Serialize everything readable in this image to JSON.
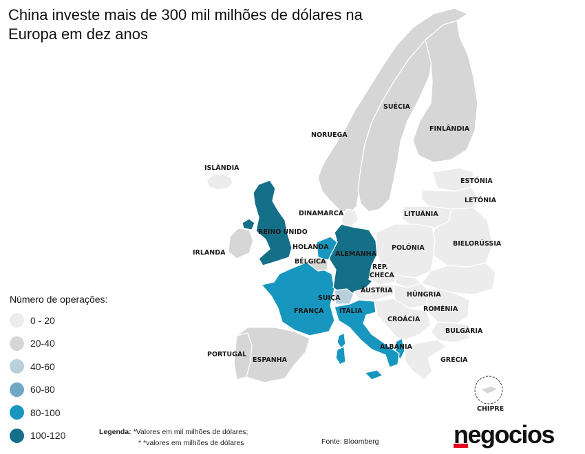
{
  "title": "China investe mais de 300 mil milhões de dólares na Europa em dez anos",
  "colors": {
    "bin_0_20": "#ececec",
    "bin_20_40": "#d6d6d6",
    "bin_40_60": "#b8cfdc",
    "bin_60_80": "#6fa8c4",
    "bin_80_100": "#1797bf",
    "bin_100_120": "#146f88"
  },
  "legend": {
    "title": "Número de operações:",
    "items": [
      {
        "label": "0 - 20",
        "color": "#ececec"
      },
      {
        "label": "20-40",
        "color": "#d6d6d6"
      },
      {
        "label": "40-60",
        "color": "#b8cfdc"
      },
      {
        "label": "60-80",
        "color": "#6fa8c4"
      },
      {
        "label": "80-100",
        "color": "#1797bf"
      },
      {
        "label": "100-120",
        "color": "#146f88"
      }
    ]
  },
  "countries": {
    "islandia": "ISLÂNDIA",
    "noruega": "NORUEGA",
    "suecia": "SUÉCIA",
    "finlandia": "FINLÂNDIA",
    "estonia": "ESTÓNIA",
    "letonia": "LETÓNIA",
    "lituania": "LITUÂNIA",
    "dinamarca": "DINAMARCA",
    "reino_unido": "REINO UNIDO",
    "irlanda": "IRLANDA",
    "holanda": "HOLANDA",
    "belgica": "BÉLGICA",
    "alemanha": "ALEMANHA",
    "polonia": "POLÓNIA",
    "bielorussia": "BIELORÚSSIA",
    "rep_checa_1": "REP.",
    "rep_checa_2": "CHECA",
    "austria": "ÁUSTRIA",
    "hungria": "HÚNGRIA",
    "suica": "SUIÇA",
    "franca": "FRANÇA",
    "italia": "ITÁLIA",
    "romenia": "ROMÉNIA",
    "croacia": "CROÁCIA",
    "bulgaria": "BULGÁRIA",
    "albania": "ALBÂNIA",
    "grecia": "GRÉCIA",
    "portugal": "PORTUGAL",
    "espanha": "ESPANHA",
    "chipre": "CHIPRE"
  },
  "notes": {
    "label": "Legenda:",
    "line1": "*Valores em mil milhões de dólares;",
    "line2": "* *valores em milhões de dólares"
  },
  "source": "Fonte: Bloomberg",
  "logo": "negocios"
}
